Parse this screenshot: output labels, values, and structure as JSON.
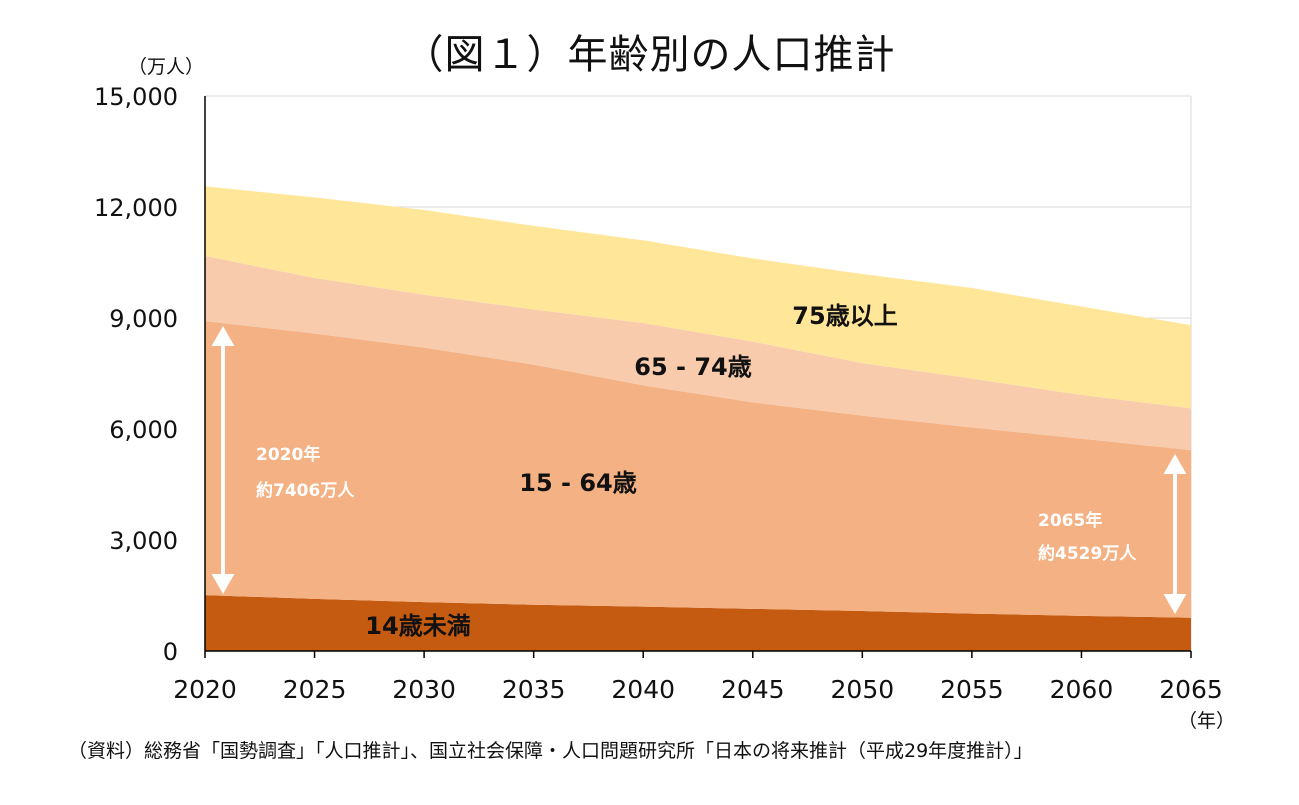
{
  "title": "（図１）年齢別の人口推計",
  "y_unit": "（万人）",
  "x_unit": "（年）",
  "source": "（資料）総務省「国勢調査」「人口推計」、国立社会保障・人口問題研究所「日本の将来推計（平成29年度推計）」",
  "colors": {
    "under14": "#C55A11",
    "age15_64": "#F4B183",
    "age65_74": "#F8CBAD",
    "age75plus": "#FFE699",
    "axis": "#000000",
    "grid": "#d9d9d9",
    "annotation": "#ffffff"
  },
  "chart_data": {
    "type": "area",
    "stacked": true,
    "x": [
      2020,
      2025,
      2030,
      2035,
      2040,
      2045,
      2050,
      2055,
      2060,
      2065
    ],
    "ylim": [
      0,
      15000
    ],
    "yticks": [
      "0",
      "3,000",
      "6,000",
      "9,000",
      "12,000",
      "15,000"
    ],
    "ytick_values": [
      0,
      3000,
      6000,
      9000,
      12000,
      15000
    ],
    "xticks": [
      "2020",
      "2025",
      "2030",
      "2035",
      "2040",
      "2045",
      "2050",
      "2055",
      "2060",
      "2065"
    ],
    "grid": true,
    "series": [
      {
        "name": "14歳未満",
        "color_key": "under14",
        "values": [
          1510,
          1410,
          1320,
          1250,
          1200,
          1140,
          1080,
          1010,
          950,
          900
        ]
      },
      {
        "name": "15 - 64歳",
        "color_key": "age15_64",
        "values": [
          7406,
          7170,
          6880,
          6490,
          5980,
          5580,
          5280,
          5030,
          4790,
          4529
        ]
      },
      {
        "name": "65 - 74歳",
        "color_key": "age65_74",
        "values": [
          1760,
          1500,
          1430,
          1490,
          1680,
          1640,
          1420,
          1320,
          1180,
          1130
        ]
      },
      {
        "name": "75歳以上",
        "color_key": "age75plus",
        "values": [
          1880,
          2180,
          2290,
          2260,
          2240,
          2250,
          2410,
          2450,
          2390,
          2250
        ]
      }
    ],
    "annotations": [
      {
        "line1": "2020年",
        "line2": "約7406万人"
      },
      {
        "line1": "2065年",
        "line2": "約4529万人"
      }
    ]
  }
}
